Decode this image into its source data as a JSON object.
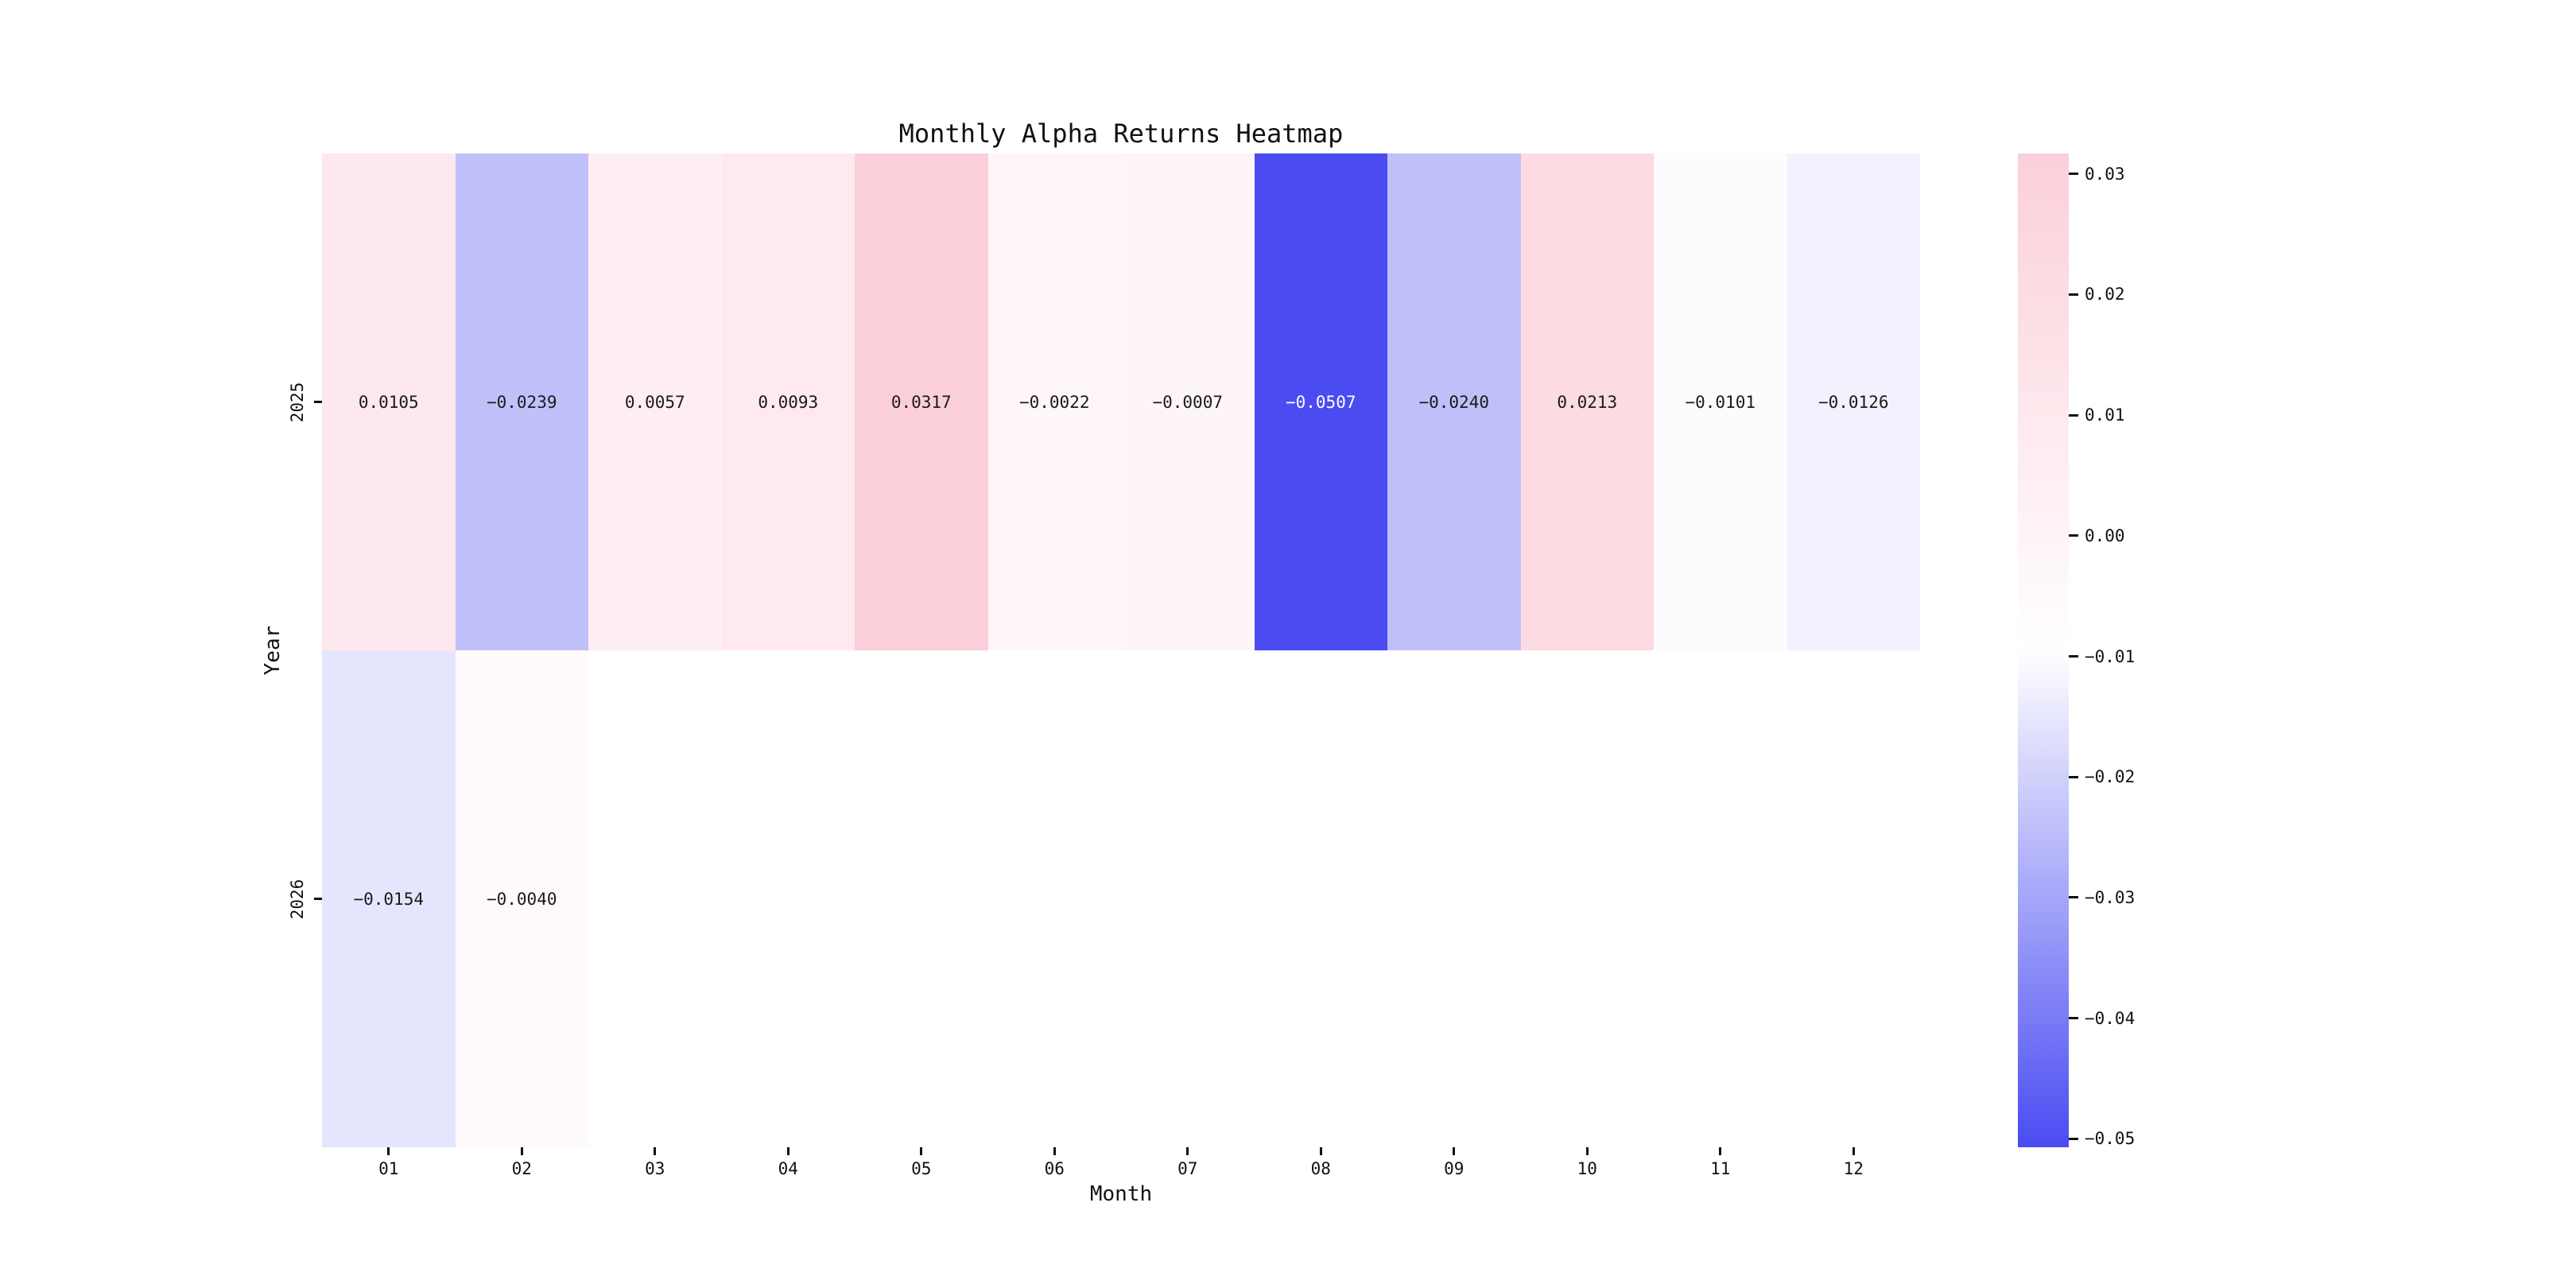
{
  "title": "Monthly Alpha Returns Heatmap",
  "chart_data": {
    "type": "heatmap",
    "title": "Monthly Alpha Returns Heatmap",
    "xlabel": "Month",
    "ylabel": "Year",
    "x_categories": [
      "01",
      "02",
      "03",
      "04",
      "05",
      "06",
      "07",
      "08",
      "09",
      "10",
      "11",
      "12"
    ],
    "y_categories": [
      "2025",
      "2026"
    ],
    "series": [
      {
        "name": "2025",
        "values": [
          0.0105,
          -0.0239,
          0.0057,
          0.0093,
          0.0317,
          -0.0022,
          -0.0007,
          -0.0507,
          -0.024,
          0.0213,
          -0.0101,
          -0.0126
        ]
      },
      {
        "name": "2026",
        "values": [
          -0.0154,
          -0.004,
          null,
          null,
          null,
          null,
          null,
          null,
          null,
          null,
          null,
          null
        ]
      }
    ],
    "cell_labels": [
      [
        "0.0105",
        "−0.0239",
        "0.0057",
        "0.0093",
        "0.0317",
        "−0.0022",
        "−0.0007",
        "−0.0507",
        "−0.0240",
        "0.0213",
        "−0.0101",
        "−0.0126"
      ],
      [
        "−0.0154",
        "−0.0040",
        "",
        "",
        "",
        "",
        "",
        "",
        "",
        "",
        "",
        ""
      ]
    ],
    "colormap": {
      "vmin": -0.0507,
      "vmax": 0.0317,
      "min_color": "#4A4CF2",
      "mid_color": "#FFFFFF",
      "max_color": "#FBCFD9",
      "dark_text_color": "#1a1a1a",
      "light_text_color": "#ffffff"
    },
    "colorbar_ticks": [
      {
        "value": 0.03,
        "label": "0.03"
      },
      {
        "value": 0.02,
        "label": "0.02"
      },
      {
        "value": 0.01,
        "label": "0.01"
      },
      {
        "value": 0.0,
        "label": "0.00"
      },
      {
        "value": -0.01,
        "label": "−0.01"
      },
      {
        "value": -0.02,
        "label": "−0.02"
      },
      {
        "value": -0.03,
        "label": "−0.03"
      },
      {
        "value": -0.04,
        "label": "−0.04"
      },
      {
        "value": -0.05,
        "label": "−0.05"
      }
    ],
    "legend_position": "right",
    "grid": false,
    "missing_cell_color": "#ffffff"
  }
}
